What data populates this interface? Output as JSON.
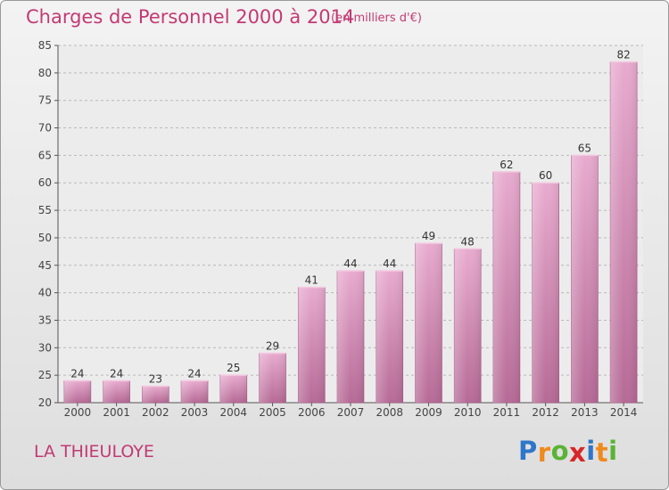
{
  "title": "Charges de Personnel 2000 à 2014",
  "subtitle": "(en milliers d'€)",
  "commune": "LA THIEULOYE",
  "logo": {
    "letters": [
      "P",
      "r",
      "o",
      "x",
      "i",
      "t",
      "i"
    ],
    "colors": [
      "#2f76c9",
      "#f08a1c",
      "#5ab335",
      "#d92626",
      "#2f76c9",
      "#f08a1c",
      "#5ab335"
    ]
  },
  "colors": {
    "accent": "#c23a73",
    "bar_light": "#e7a9cd",
    "bar_dark": "#b86d99",
    "grid": "#b8b8b8"
  },
  "chart_data": {
    "type": "bar",
    "title": "Charges de Personnel 2000 à 2014",
    "subtitle": "(en milliers d'€)",
    "xlabel": "",
    "ylabel": "",
    "categories": [
      "2000",
      "2001",
      "2002",
      "2003",
      "2004",
      "2005",
      "2006",
      "2007",
      "2008",
      "2009",
      "2010",
      "2011",
      "2012",
      "2013",
      "2014"
    ],
    "values": [
      24,
      24,
      23,
      24,
      25,
      29,
      41,
      44,
      44,
      49,
      48,
      62,
      60,
      65,
      82
    ],
    "ylim": [
      20,
      85
    ],
    "yticks": [
      20,
      25,
      30,
      35,
      40,
      45,
      50,
      55,
      60,
      65,
      70,
      75,
      80,
      85
    ],
    "grid": "horizontal dashed",
    "legend": "none"
  }
}
